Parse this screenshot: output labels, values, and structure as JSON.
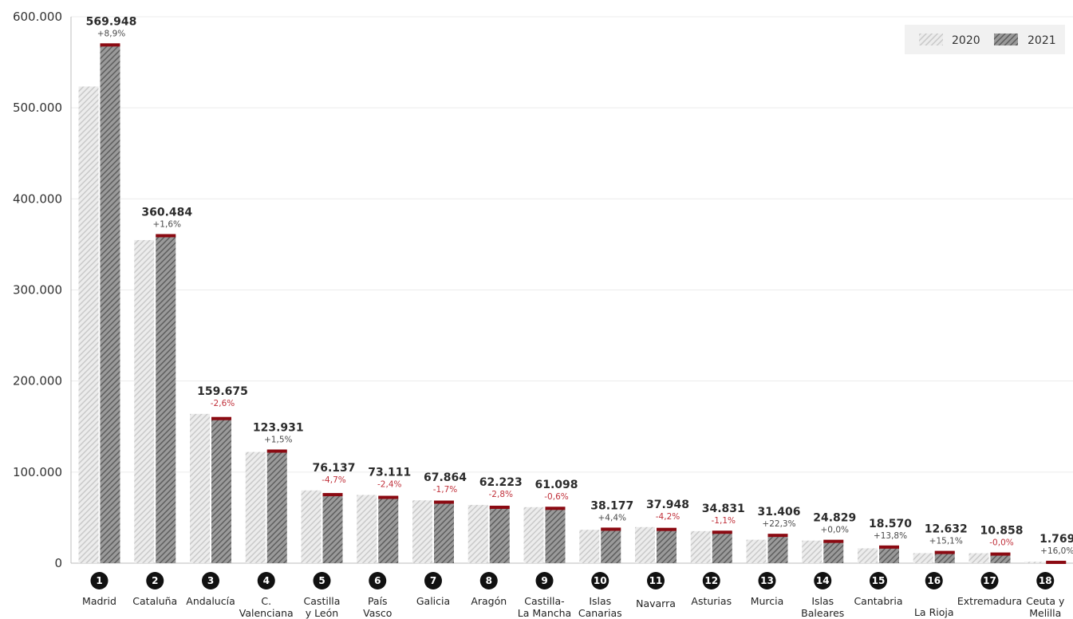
{
  "chart_data": {
    "type": "bar",
    "title": "",
    "xlabel": "",
    "ylabel": "",
    "ylim": [
      0,
      600000
    ],
    "yticks": [
      "0",
      "100.000",
      "200.000",
      "300.000",
      "400.000",
      "500.000",
      "600.000"
    ],
    "ytick_values": [
      0,
      100000,
      200000,
      300000,
      400000,
      500000,
      600000
    ],
    "grid": true,
    "legend_position": "top-right",
    "legend": [
      "2020",
      "2021"
    ],
    "colors": {
      "series_2020": "#d4d4d4",
      "series_2021": "#6e6e6e",
      "increase_cap": "#8b0a12",
      "badge": "#111111",
      "pct_positive": "#4a4a4a",
      "pct_negative": "#c0303a"
    },
    "categories": [
      {
        "rank": "1",
        "line1": "Madrid",
        "line2": ""
      },
      {
        "rank": "2",
        "line1": "Cataluña",
        "line2": ""
      },
      {
        "rank": "3",
        "line1": "Andalucía",
        "line2": ""
      },
      {
        "rank": "4",
        "line1": "C.",
        "line2": "Valenciana"
      },
      {
        "rank": "5",
        "line1": "Castilla",
        "line2": "y León"
      },
      {
        "rank": "6",
        "line1": "País",
        "line2": "Vasco"
      },
      {
        "rank": "7",
        "line1": "Galicia",
        "line2": ""
      },
      {
        "rank": "8",
        "line1": "Aragón",
        "line2": ""
      },
      {
        "rank": "9",
        "line1": "Castilla-",
        "line2": "La Mancha"
      },
      {
        "rank": "10",
        "line1": "Islas",
        "line2": "Canarias"
      },
      {
        "rank": "11",
        "line1": "Navarra",
        "line2": ""
      },
      {
        "rank": "12",
        "line1": "Asturias",
        "line2": ""
      },
      {
        "rank": "13",
        "line1": "Murcia",
        "line2": ""
      },
      {
        "rank": "14",
        "line1": "Islas",
        "line2": "Baleares"
      },
      {
        "rank": "15",
        "line1": "Cantabria",
        "line2": ""
      },
      {
        "rank": "16",
        "line1": "La Rioja",
        "line2": ""
      },
      {
        "rank": "17",
        "line1": "Extremadura",
        "line2": ""
      },
      {
        "rank": "18",
        "line1": "Ceuta y",
        "line2": "Melilla"
      }
    ],
    "series": [
      {
        "name": "2020",
        "values": [
          523400,
          354800,
          163900,
          122100,
          79900,
          74900,
          69000,
          64000,
          61500,
          36600,
          39600,
          35200,
          25700,
          24800,
          16300,
          11000,
          10900,
          1500
        ]
      },
      {
        "name": "2021",
        "values": [
          569948,
          360484,
          159675,
          123931,
          76137,
          73111,
          67864,
          62223,
          61098,
          38177,
          37948,
          34831,
          31406,
          24829,
          18570,
          12632,
          10858,
          1769
        ]
      }
    ],
    "value_labels": [
      "569.948",
      "360.484",
      "159.675",
      "123.931",
      "76.137",
      "73.111",
      "67.864",
      "62.223",
      "61.098",
      "38.177",
      "37.948",
      "34.831",
      "31.406",
      "24.829",
      "18.570",
      "12.632",
      "10.858",
      "1.769"
    ],
    "change_labels": [
      "+8,9%",
      "+1,6%",
      "-2,6%",
      "+1,5%",
      "-4,7%",
      "-2,4%",
      "-1,7%",
      "-2,8%",
      "-0,6%",
      "+4,4%",
      "-4,2%",
      "-1,1%",
      "+22,3%",
      "+0,0%",
      "+13,8%",
      "+15,1%",
      "-0,0%",
      "+16,0%"
    ]
  }
}
